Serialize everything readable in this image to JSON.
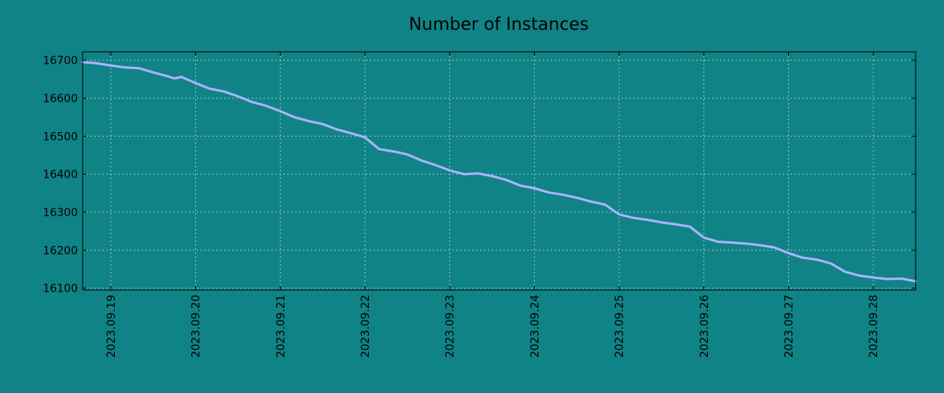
{
  "chart_data": {
    "type": "line",
    "title": "Number of Instances",
    "xlabel": "",
    "ylabel": "",
    "background_color": "#108386",
    "line_color": "#a8b4ff",
    "grid": true,
    "x_ticks": [
      "2023.09.19",
      "2023.09.20",
      "2023.09.21",
      "2023.09.22",
      "2023.09.23",
      "2023.09.24",
      "2023.09.25",
      "2023.09.26",
      "2023.09.27",
      "2023.09.28"
    ],
    "y_ticks": [
      16100,
      16200,
      16300,
      16400,
      16500,
      16600,
      16700
    ],
    "xlim": [
      "2023-09-18 16:00",
      "2023-09-28 12:00"
    ],
    "ylim": [
      16095,
      16722
    ],
    "series": [
      {
        "points": [
          [
            "2023-09-18 16:00",
            16695
          ],
          [
            "2023-09-18 20:00",
            16692
          ],
          [
            "2023-09-19 00:00",
            16686
          ],
          [
            "2023-09-19 04:00",
            16681
          ],
          [
            "2023-09-19 08:00",
            16679
          ],
          [
            "2023-09-19 12:00",
            16668
          ],
          [
            "2023-09-19 16:00",
            16658
          ],
          [
            "2023-09-19 18:00",
            16652
          ],
          [
            "2023-09-19 20:00",
            16656
          ],
          [
            "2023-09-20 00:00",
            16640
          ],
          [
            "2023-09-20 04:00",
            16625
          ],
          [
            "2023-09-20 08:00",
            16618
          ],
          [
            "2023-09-20 12:00",
            16605
          ],
          [
            "2023-09-20 16:00",
            16590
          ],
          [
            "2023-09-20 20:00",
            16580
          ],
          [
            "2023-09-21 00:00",
            16566
          ],
          [
            "2023-09-21 04:00",
            16550
          ],
          [
            "2023-09-21 08:00",
            16540
          ],
          [
            "2023-09-21 12:00",
            16532
          ],
          [
            "2023-09-21 16:00",
            16518
          ],
          [
            "2023-09-21 20:00",
            16508
          ],
          [
            "2023-09-22 00:00",
            16497
          ],
          [
            "2023-09-22 04:00",
            16466
          ],
          [
            "2023-09-22 08:00",
            16460
          ],
          [
            "2023-09-22 12:00",
            16452
          ],
          [
            "2023-09-22 16:00",
            16436
          ],
          [
            "2023-09-22 20:00",
            16424
          ],
          [
            "2023-09-23 00:00",
            16410
          ],
          [
            "2023-09-23 04:00",
            16400
          ],
          [
            "2023-09-23 08:00",
            16402
          ],
          [
            "2023-09-23 12:00",
            16395
          ],
          [
            "2023-09-23 16:00",
            16385
          ],
          [
            "2023-09-23 20:00",
            16370
          ],
          [
            "2023-09-24 00:00",
            16363
          ],
          [
            "2023-09-24 04:00",
            16352
          ],
          [
            "2023-09-24 08:00",
            16346
          ],
          [
            "2023-09-24 12:00",
            16338
          ],
          [
            "2023-09-24 16:00",
            16328
          ],
          [
            "2023-09-24 20:00",
            16320
          ],
          [
            "2023-09-25 00:00",
            16294
          ],
          [
            "2023-09-25 04:00",
            16285
          ],
          [
            "2023-09-25 08:00",
            16280
          ],
          [
            "2023-09-25 12:00",
            16273
          ],
          [
            "2023-09-25 16:00",
            16268
          ],
          [
            "2023-09-25 20:00",
            16262
          ],
          [
            "2023-09-26 00:00",
            16233
          ],
          [
            "2023-09-26 04:00",
            16222
          ],
          [
            "2023-09-26 08:00",
            16220
          ],
          [
            "2023-09-26 12:00",
            16217
          ],
          [
            "2023-09-26 16:00",
            16213
          ],
          [
            "2023-09-26 20:00",
            16207
          ],
          [
            "2023-09-27 00:00",
            16192
          ],
          [
            "2023-09-27 04:00",
            16180
          ],
          [
            "2023-09-27 08:00",
            16175
          ],
          [
            "2023-09-27 12:00",
            16165
          ],
          [
            "2023-09-27 16:00",
            16143
          ],
          [
            "2023-09-27 20:00",
            16133
          ],
          [
            "2023-09-28 00:00",
            16128
          ],
          [
            "2023-09-28 04:00",
            16124
          ],
          [
            "2023-09-28 08:00",
            16125
          ],
          [
            "2023-09-28 12:00",
            16118
          ]
        ]
      }
    ]
  }
}
